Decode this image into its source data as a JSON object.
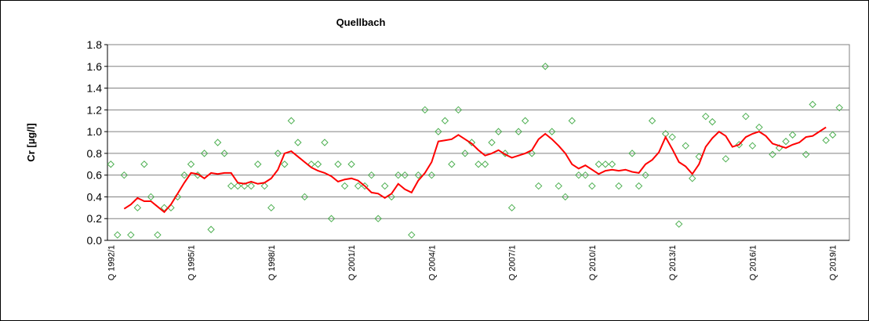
{
  "chart_data": {
    "type": "line",
    "title": "Quellbach",
    "y_label": "Cr [µg/l]",
    "categories": [
      "Q 1992/1",
      null,
      null,
      null,
      null,
      null,
      null,
      null,
      null,
      null,
      null,
      null,
      "Q 1995/1",
      null,
      null,
      null,
      null,
      null,
      null,
      null,
      null,
      null,
      null,
      null,
      "Q 1998/1",
      null,
      null,
      null,
      null,
      null,
      null,
      null,
      null,
      null,
      null,
      null,
      "Q 2001/1",
      null,
      null,
      null,
      null,
      null,
      null,
      null,
      null,
      null,
      null,
      null,
      "Q 2004/1",
      null,
      null,
      null,
      null,
      null,
      null,
      null,
      null,
      null,
      null,
      null,
      "Q 2007/1",
      null,
      null,
      null,
      null,
      null,
      null,
      null,
      null,
      null,
      null,
      null,
      "Q 2010/1",
      null,
      null,
      null,
      null,
      null,
      null,
      null,
      null,
      null,
      null,
      null,
      "Q 2013/1",
      null,
      null,
      null,
      null,
      null,
      null,
      null,
      null,
      null,
      null,
      null,
      "Q 2016/1",
      null,
      null,
      null,
      null,
      null,
      null,
      null,
      null,
      null,
      null,
      null,
      "Q 2019/1",
      null,
      null
    ],
    "series": [
      {
        "color": "#4caf50",
        "marker": "diamond",
        "values": [
          0.7,
          0.05,
          0.6,
          0.05,
          0.3,
          0.7,
          0.4,
          0.05,
          0.3,
          0.3,
          0.4,
          0.6,
          0.7,
          0.6,
          0.8,
          0.1,
          0.9,
          0.8,
          0.5,
          0.5,
          0.5,
          0.5,
          0.7,
          0.5,
          0.3,
          0.8,
          0.7,
          1.1,
          0.9,
          0.4,
          0.7,
          0.7,
          0.9,
          0.2,
          0.7,
          0.5,
          0.7,
          0.5,
          0.5,
          0.6,
          0.2,
          0.5,
          0.4,
          0.6,
          0.6,
          0.05,
          0.6,
          1.2,
          0.6,
          1.0,
          1.1,
          0.7,
          1.2,
          0.8,
          0.9,
          0.7,
          0.7,
          0.9,
          1.0,
          0.8,
          0.3,
          1.0,
          1.1,
          0.8,
          0.5,
          1.6,
          1.0,
          0.5,
          0.4,
          1.1,
          0.6,
          0.6,
          0.5,
          0.7,
          0.7,
          0.7,
          0.5,
          null,
          0.8,
          0.5,
          0.6,
          1.1,
          null,
          0.98,
          0.95,
          0.15,
          0.87,
          0.57,
          0.77,
          1.14,
          1.09,
          null,
          0.75,
          null,
          0.88,
          1.14,
          0.87,
          1.04,
          null,
          0.79,
          0.85,
          0.91,
          0.97,
          null,
          0.79,
          1.25,
          null,
          0.92,
          0.97,
          1.22,
          null
        ]
      },
      {
        "color": "#ff0000",
        "line": true,
        "values": [
          null,
          null,
          0.29,
          0.33,
          0.39,
          0.36,
          0.36,
          0.31,
          0.26,
          0.33,
          0.43,
          0.53,
          0.62,
          0.61,
          0.57,
          0.62,
          0.61,
          0.62,
          0.62,
          0.53,
          0.52,
          0.54,
          0.52,
          0.53,
          0.57,
          0.65,
          0.8,
          0.82,
          0.77,
          0.72,
          0.67,
          0.64,
          0.62,
          0.59,
          0.54,
          0.56,
          0.57,
          0.55,
          0.5,
          0.44,
          0.43,
          0.39,
          0.43,
          0.52,
          0.47,
          0.44,
          0.55,
          0.62,
          0.72,
          0.91,
          0.92,
          0.93,
          0.97,
          0.93,
          0.89,
          0.83,
          0.78,
          0.8,
          0.83,
          0.79,
          0.76,
          0.78,
          0.8,
          0.83,
          0.93,
          0.98,
          0.93,
          0.87,
          0.8,
          0.7,
          0.66,
          0.69,
          0.65,
          0.61,
          0.64,
          0.65,
          0.64,
          0.65,
          0.63,
          0.62,
          0.7,
          0.74,
          0.81,
          0.95,
          0.84,
          0.72,
          0.68,
          0.61,
          0.7,
          0.86,
          0.94,
          1.0,
          0.96,
          0.86,
          0.88,
          0.95,
          0.98,
          1.0,
          0.96,
          0.89,
          0.87,
          0.85,
          0.88,
          0.9,
          0.95,
          0.96,
          1.0,
          1.04,
          null,
          null,
          null
        ]
      }
    ],
    "ylim": [
      0,
      1.8
    ],
    "yticks": [
      {
        "value": 0,
        "label": "0.0"
      },
      0.2,
      0.4,
      0.6,
      0.8,
      {
        "value": 1,
        "label": "1.0"
      },
      1.2,
      1.4,
      1.6,
      1.8
    ],
    "grid": true
  }
}
